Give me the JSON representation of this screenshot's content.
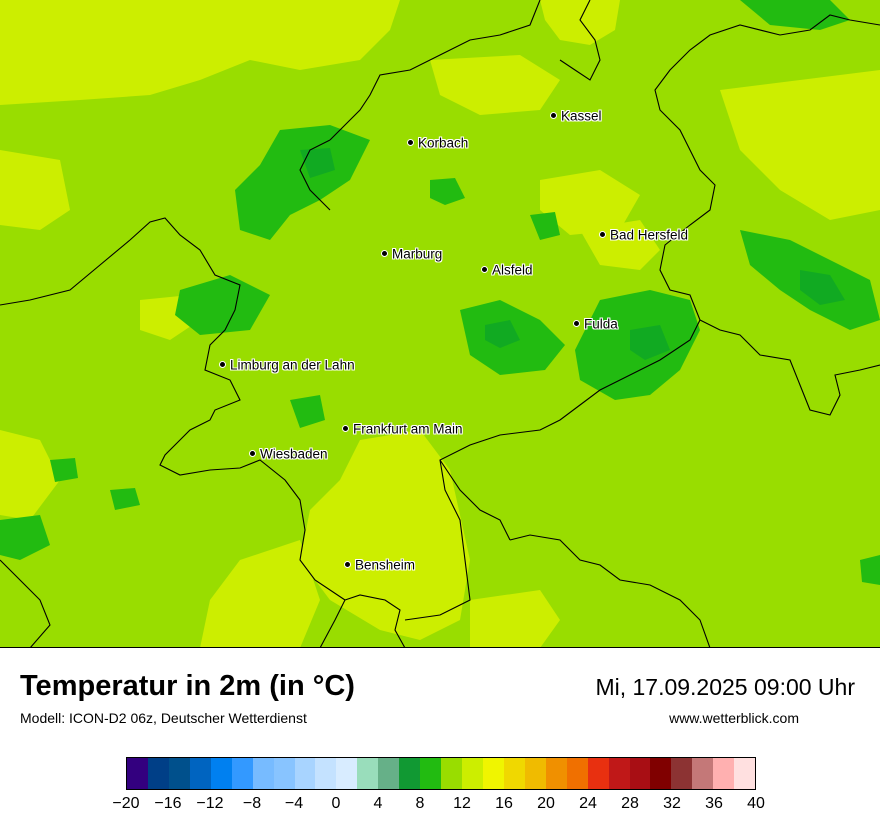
{
  "map": {
    "colors": {
      "background": "#99dd00",
      "light": "#ccee00",
      "dark": "#22bb11",
      "darker": "#11aa22"
    },
    "cities": [
      {
        "name": "Kassel"
      },
      {
        "name": "Korbach"
      },
      {
        "name": "Bad Hersfeld"
      },
      {
        "name": "Marburg"
      },
      {
        "name": "Alsfeld"
      },
      {
        "name": "Fulda"
      },
      {
        "name": "Limburg an der Lahn"
      },
      {
        "name": "Frankfurt am Main"
      },
      {
        "name": "Wiesbaden"
      },
      {
        "name": "Bensheim"
      }
    ]
  },
  "header": {
    "title": "Temperatur in 2m (in °C)",
    "subtitle": "Modell: ICON-D2 06z, Deutscher Wetterdienst",
    "datetime": "Mi, 17.09.2025 09:00 Uhr",
    "website": "www.wetterblick.com"
  },
  "legend": {
    "colors": [
      "#33007f",
      "#003f87",
      "#00508c",
      "#0064c0",
      "#0080f0",
      "#3399ff",
      "#77bbff",
      "#88c4ff",
      "#a8d4ff",
      "#c4e2ff",
      "#d8ecff",
      "#99ddbb",
      "#66b088",
      "#119933",
      "#22bb11",
      "#99dd00",
      "#ccee00",
      "#f0f500",
      "#f0d800",
      "#f0bb00",
      "#f09000",
      "#f07000",
      "#e83010",
      "#c01818",
      "#a80e14",
      "#800000",
      "#8c3333",
      "#c47878",
      "#ffb0b0",
      "#ffe0e0"
    ],
    "ticks": [
      "−20",
      "−16",
      "−12",
      "−8",
      "−4",
      "0",
      "4",
      "8",
      "12",
      "16",
      "20",
      "24",
      "28",
      "32",
      "36",
      "40"
    ]
  }
}
